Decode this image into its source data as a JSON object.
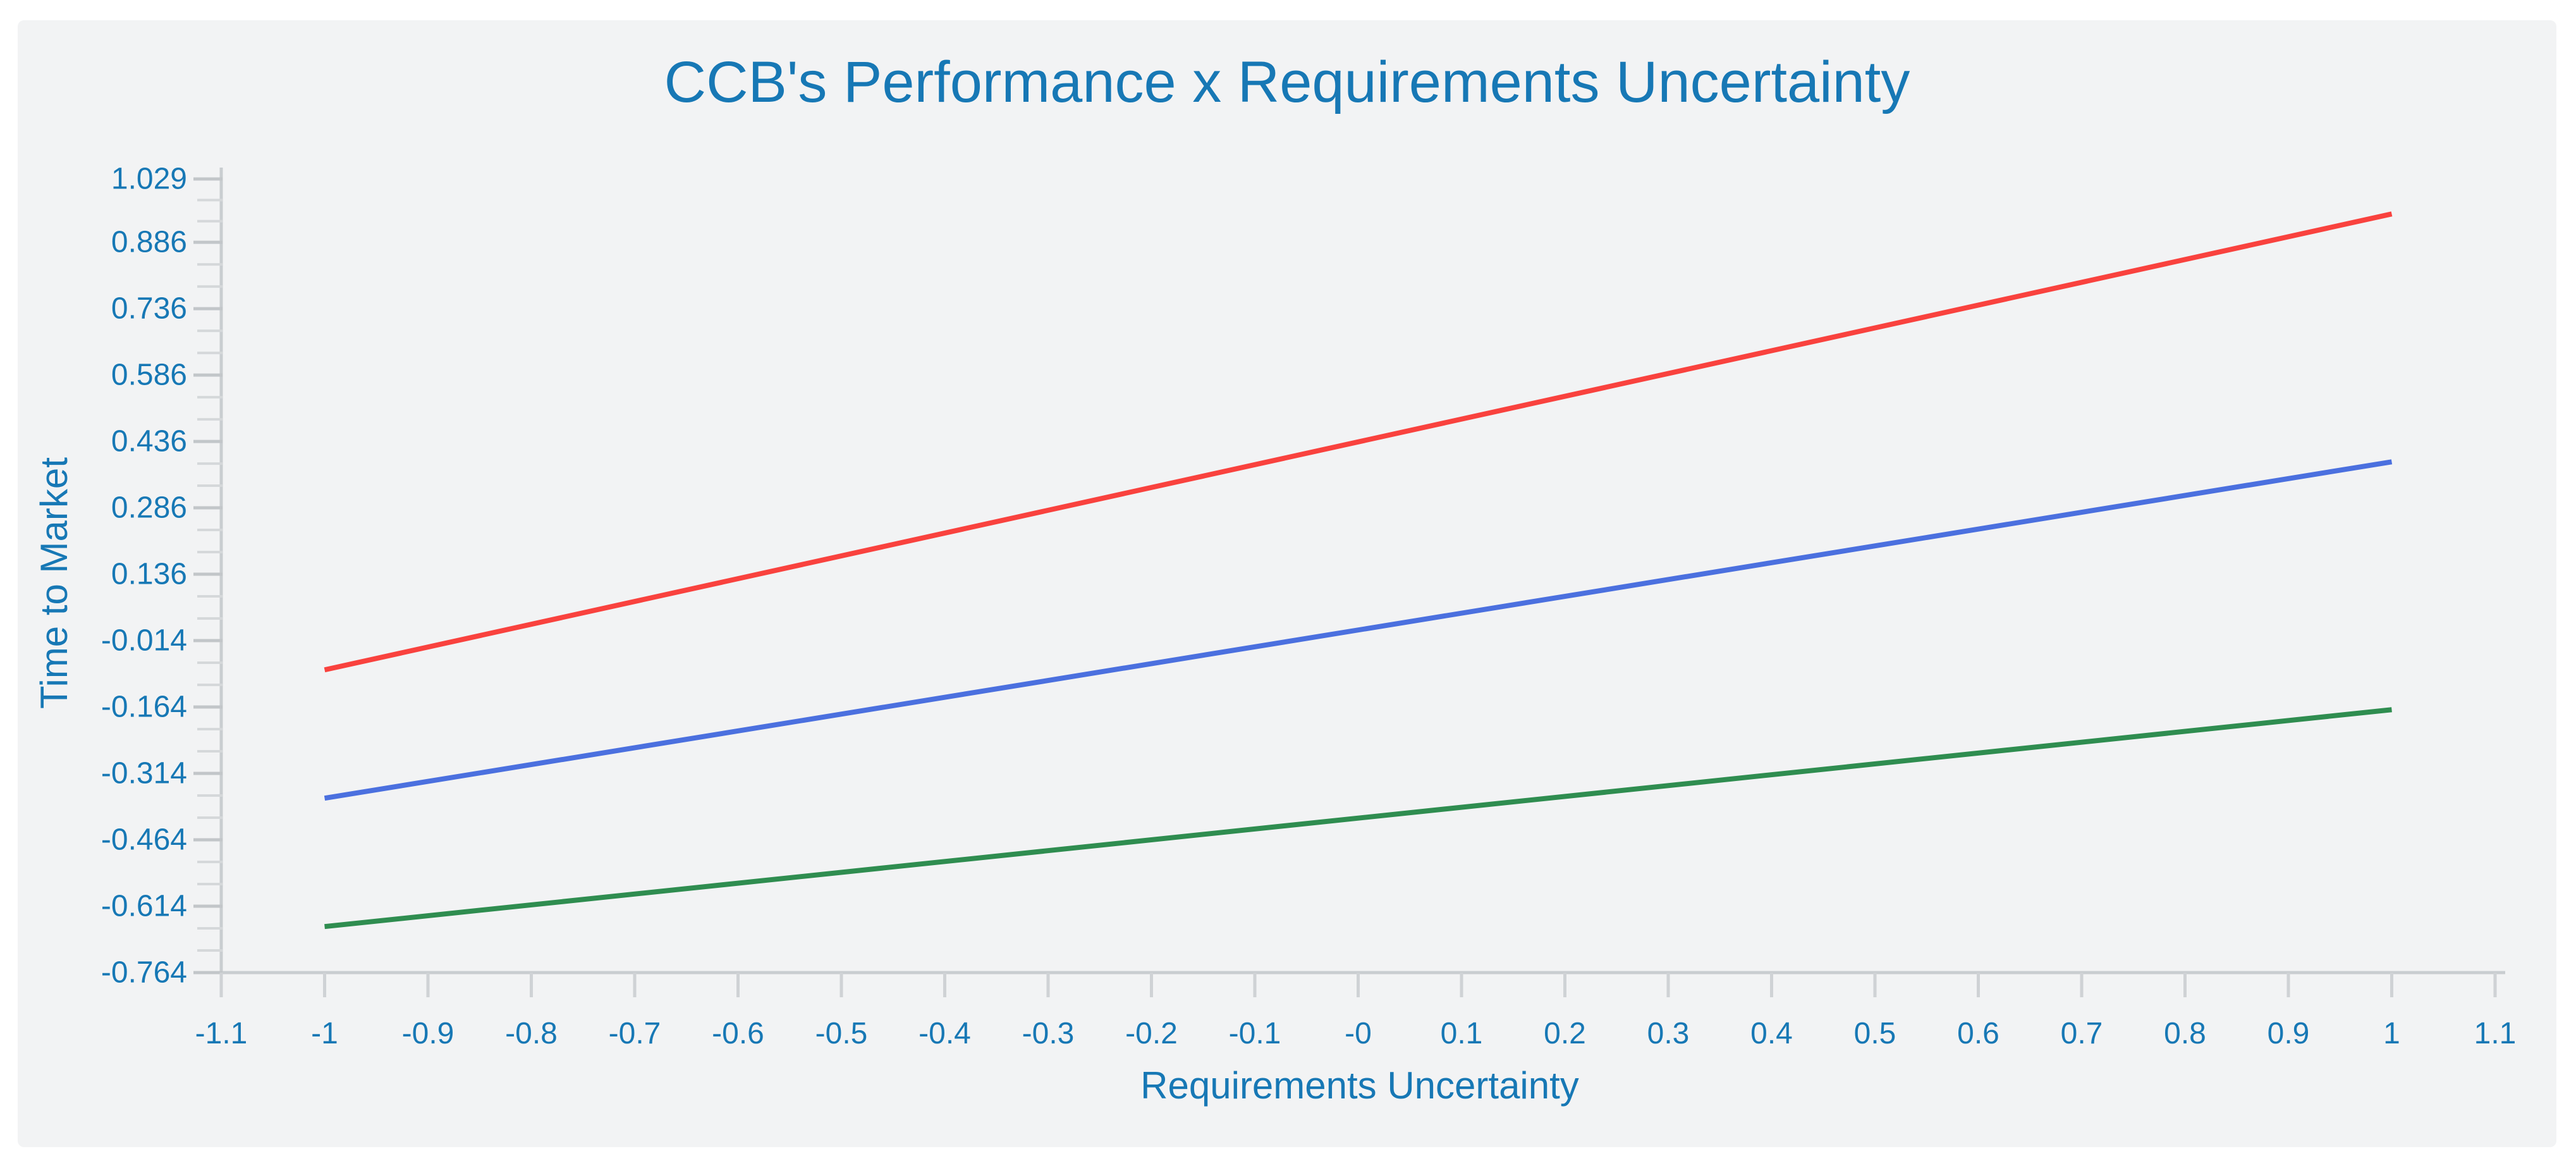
{
  "title": {
    "text": "CCB's Performance x Requirements Uncertainty",
    "color": "#1778b5"
  },
  "x_axis": {
    "label": "Requirements Uncertainty",
    "tick_values": [
      -1.1,
      -1,
      -0.9,
      -0.8,
      -0.7,
      -0.6,
      -0.5,
      -0.4,
      -0.3,
      -0.2,
      -0.1,
      0,
      0.1,
      0.2,
      0.3,
      0.4,
      0.5,
      0.6,
      0.7,
      0.8,
      0.9,
      1,
      1.1
    ],
    "tick_labels": [
      "-1.1",
      "-1",
      "-0.9",
      "-0.8",
      "-0.7",
      "-0.6",
      "-0.5",
      "-0.4",
      "-0.3",
      "-0.2",
      "-0.1",
      "-0",
      "0.1",
      "0.2",
      "0.3",
      "0.4",
      "0.5",
      "0.6",
      "0.7",
      "0.8",
      "0.9",
      "1",
      "1.1"
    ]
  },
  "y_axis": {
    "label": "Time to Market",
    "tick_values": [
      1.029,
      0.886,
      0.736,
      0.586,
      0.436,
      0.286,
      0.136,
      -0.014,
      -0.164,
      -0.314,
      -0.464,
      -0.614,
      -0.764
    ],
    "tick_labels": [
      "1.029",
      "0.886",
      "0.736",
      "0.586",
      "0.436",
      "0.286",
      "0.136",
      "-0.014",
      "-0.164",
      "-0.314",
      "-0.464",
      "-0.614",
      "-0.764"
    ]
  },
  "chart_data": {
    "type": "line",
    "title": "CCB's Performance x Requirements Uncertainty",
    "xlabel": "Requirements Uncertainty",
    "ylabel": "Time to Market",
    "xlim": [
      -1.1,
      1.1
    ],
    "ylim": [
      -0.764,
      1.029
    ],
    "grid": false,
    "legend": "none",
    "series": [
      {
        "name": "red-line",
        "color": "#f9423e",
        "x": [
          -1,
          1
        ],
        "y": [
          -0.08,
          0.95
        ]
      },
      {
        "name": "blue-line",
        "color": "#4b70df",
        "x": [
          -1,
          1
        ],
        "y": [
          -0.37,
          0.39
        ]
      },
      {
        "name": "green-line",
        "color": "#2f8d50",
        "x": [
          -1,
          1
        ],
        "y": [
          -0.66,
          -0.17
        ]
      }
    ]
  },
  "colors": {
    "panel_background": "#f2f3f4",
    "page_background": "#ffffff",
    "axis_line": "#c9cdd0",
    "major_tick": "#c2c6c9",
    "minor_tick": "#d5d8da",
    "x_tick": "#cfd2d5",
    "text_blue": "#1778b5"
  }
}
